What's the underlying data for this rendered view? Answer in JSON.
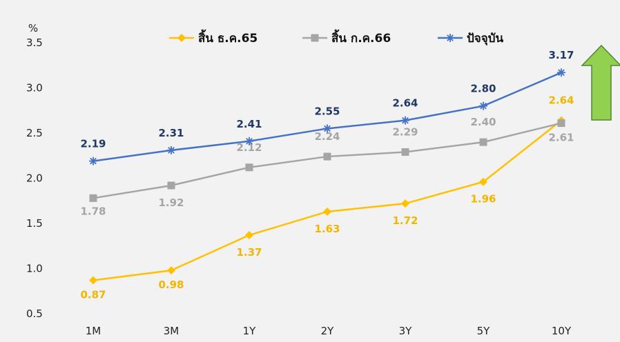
{
  "chart_data": {
    "type": "line",
    "unit_label": "%",
    "categories": [
      "1M",
      "3M",
      "1Y",
      "2Y",
      "3Y",
      "5Y",
      "10Y"
    ],
    "ylim": [
      0.5,
      3.5
    ],
    "yticks": [
      "0.5",
      "1.0",
      "1.5",
      "2.0",
      "2.5",
      "3.0",
      "3.5"
    ],
    "grid": false,
    "legend_position": "top",
    "series": [
      {
        "name": "สิ้น ธ.ค.65",
        "color": "#ffc000",
        "label_color": "#f2b600",
        "marker": "diamond",
        "values": [
          0.87,
          0.98,
          1.37,
          1.63,
          1.72,
          1.96,
          2.64
        ],
        "labels": [
          "0.87",
          "0.98",
          "1.37",
          "1.63",
          "1.72",
          "1.96",
          "2.64"
        ]
      },
      {
        "name": "สิ้น ก.ค.66",
        "color": "#a5a5a5",
        "label_color": "#a5a5a5",
        "marker": "square",
        "values": [
          1.78,
          1.92,
          2.12,
          2.24,
          2.29,
          2.4,
          2.61
        ],
        "labels": [
          "1.78",
          "1.92",
          "2.12",
          "2.24",
          "2.29",
          "2.40",
          "2.61"
        ]
      },
      {
        "name": "ปัจจุบัน",
        "color": "#4472c4",
        "label_color": "#1f3864",
        "marker": "asterisk",
        "values": [
          2.19,
          2.31,
          2.41,
          2.55,
          2.64,
          2.8,
          3.17
        ],
        "labels": [
          "2.19",
          "2.31",
          "2.41",
          "2.55",
          "2.64",
          "2.80",
          "3.17"
        ]
      }
    ],
    "annotation": {
      "type": "up-arrow",
      "fill": "#92d050",
      "stroke": "#548235"
    }
  }
}
